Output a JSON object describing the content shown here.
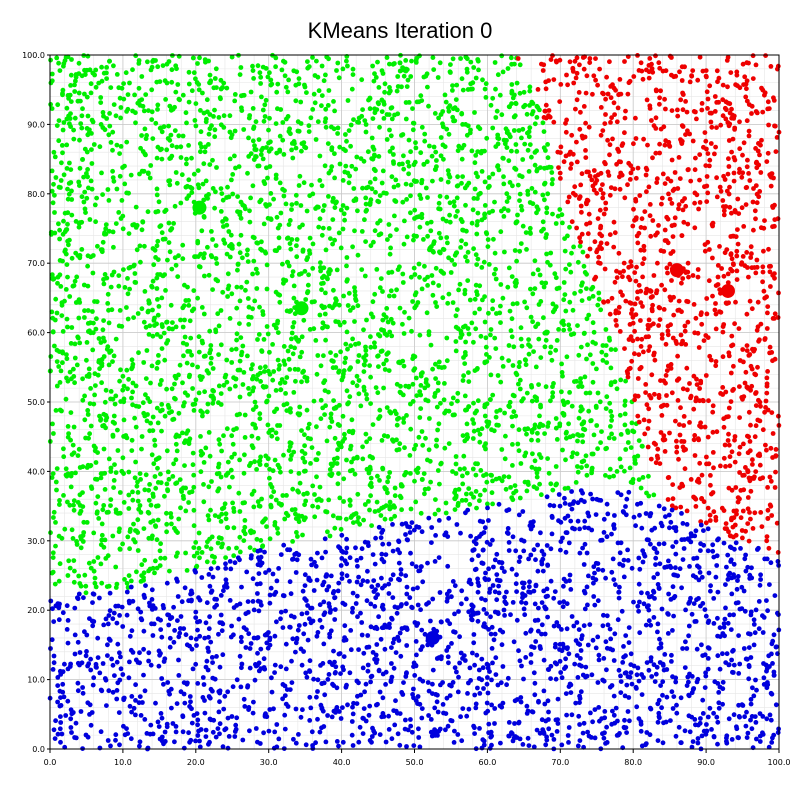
{
  "chart_data": {
    "type": "scatter",
    "title": "KMeans Iteration 0",
    "xlabel": "",
    "ylabel": "",
    "xlim": [
      0,
      100
    ],
    "ylim": [
      0,
      100
    ],
    "x_ticks": [
      "0.0",
      "10.0",
      "20.0",
      "30.0",
      "40.0",
      "50.0",
      "60.0",
      "70.0",
      "80.0",
      "90.0",
      "100.0"
    ],
    "y_ticks": [
      "0.0",
      "10.0",
      "20.0",
      "30.0",
      "40.0",
      "50.0",
      "60.0",
      "70.0",
      "80.0",
      "90.0",
      "100.0"
    ],
    "grid": true,
    "legend": "none",
    "point_count_per_cluster_visible": "dense uniform sample",
    "colors": {
      "cluster_green": "#00ee00",
      "cluster_red": "#ee0000",
      "cluster_blue": "#0000dd",
      "grid_major": "#c8c8c8",
      "grid_minor": "#e6e6e6"
    },
    "centroids": [
      {
        "cluster": "green-a",
        "x": 20.5,
        "y": 78.0,
        "color": "#00ee00"
      },
      {
        "cluster": "green-b",
        "x": 34.5,
        "y": 63.5,
        "color": "#00ee00"
      },
      {
        "cluster": "red-a",
        "x": 86.0,
        "y": 69.0,
        "color": "#ee0000"
      },
      {
        "cluster": "red-b",
        "x": 93.0,
        "y": 66.0,
        "color": "#ee0000"
      },
      {
        "cluster": "blue",
        "x": 52.5,
        "y": 16.0,
        "color": "#0000dd"
      }
    ]
  }
}
